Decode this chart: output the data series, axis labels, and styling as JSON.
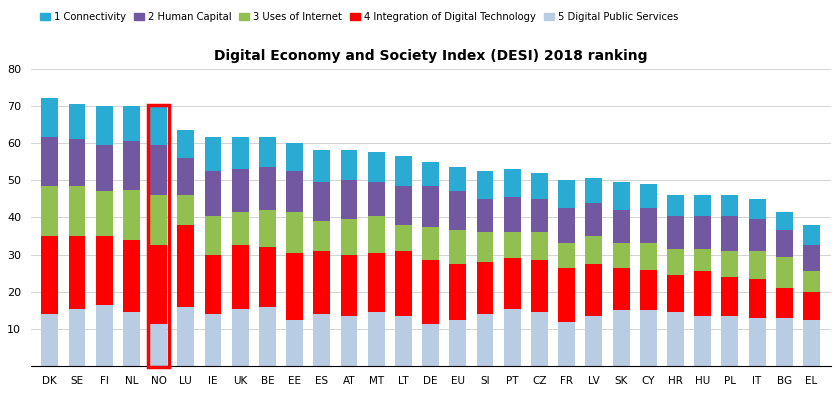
{
  "title": "Digital Economy and Society Index (DESI) 2018 ranking",
  "categories": [
    "DK",
    "SE",
    "FI",
    "NL",
    "NO",
    "LU",
    "IE",
    "UK",
    "BE",
    "EE",
    "ES",
    "AT",
    "MT",
    "LT",
    "DE",
    "EU",
    "SI",
    "PT",
    "CZ",
    "FR",
    "LV",
    "SK",
    "CY",
    "HR",
    "HU",
    "PL",
    "IT",
    "BG",
    "EL"
  ],
  "connectivity": [
    10.5,
    9.5,
    10.5,
    9.5,
    10.5,
    7.5,
    9.0,
    8.5,
    8.0,
    7.5,
    8.5,
    8.0,
    8.0,
    8.0,
    6.5,
    6.5,
    7.5,
    7.5,
    7.0,
    7.5,
    6.5,
    7.5,
    6.5,
    5.5,
    5.5,
    5.5,
    5.5,
    5.0,
    5.5
  ],
  "human_capital": [
    13.0,
    12.5,
    12.5,
    13.0,
    13.5,
    10.0,
    12.0,
    11.5,
    11.5,
    11.0,
    10.5,
    10.5,
    9.0,
    10.5,
    11.0,
    10.5,
    9.0,
    9.5,
    9.0,
    9.5,
    9.0,
    9.0,
    9.5,
    9.0,
    9.0,
    9.5,
    8.5,
    7.0,
    7.0
  ],
  "uses_of_internet": [
    13.5,
    13.5,
    12.0,
    13.5,
    13.5,
    8.0,
    10.5,
    9.0,
    10.0,
    11.0,
    8.0,
    9.5,
    10.0,
    7.0,
    9.0,
    9.0,
    8.0,
    7.0,
    7.5,
    6.5,
    7.5,
    6.5,
    7.0,
    7.0,
    6.0,
    7.0,
    7.5,
    8.5,
    5.5
  ],
  "integration_digital": [
    21.0,
    19.5,
    18.5,
    19.5,
    21.0,
    22.0,
    16.0,
    17.0,
    16.0,
    18.0,
    17.0,
    16.5,
    16.0,
    17.5,
    17.0,
    15.0,
    14.0,
    13.5,
    14.0,
    14.5,
    14.0,
    11.5,
    11.0,
    10.0,
    12.0,
    10.5,
    10.5,
    8.0,
    7.5
  ],
  "digital_public": [
    14.0,
    15.5,
    16.5,
    14.5,
    11.5,
    16.0,
    14.0,
    15.5,
    16.0,
    12.5,
    14.0,
    13.5,
    14.5,
    13.5,
    11.5,
    12.5,
    14.0,
    15.5,
    14.5,
    12.0,
    13.5,
    15.0,
    15.0,
    14.5,
    13.5,
    13.5,
    13.0,
    13.0,
    12.5
  ],
  "colors": {
    "connectivity": "#29ABD4",
    "human_capital": "#7158A0",
    "uses_of_internet": "#92C050",
    "integration_digital": "#FF0000",
    "digital_public": "#B8CCE4"
  },
  "legend_labels": [
    "1 Connectivity",
    "2 Human Capital",
    "3 Uses of Internet",
    "4 Integration of Digital Technology",
    "5 Digital Public Services"
  ],
  "highlighted": "NO",
  "ylim": [
    0,
    80
  ],
  "yticks": [
    0,
    10,
    20,
    30,
    40,
    50,
    60,
    70,
    80
  ]
}
